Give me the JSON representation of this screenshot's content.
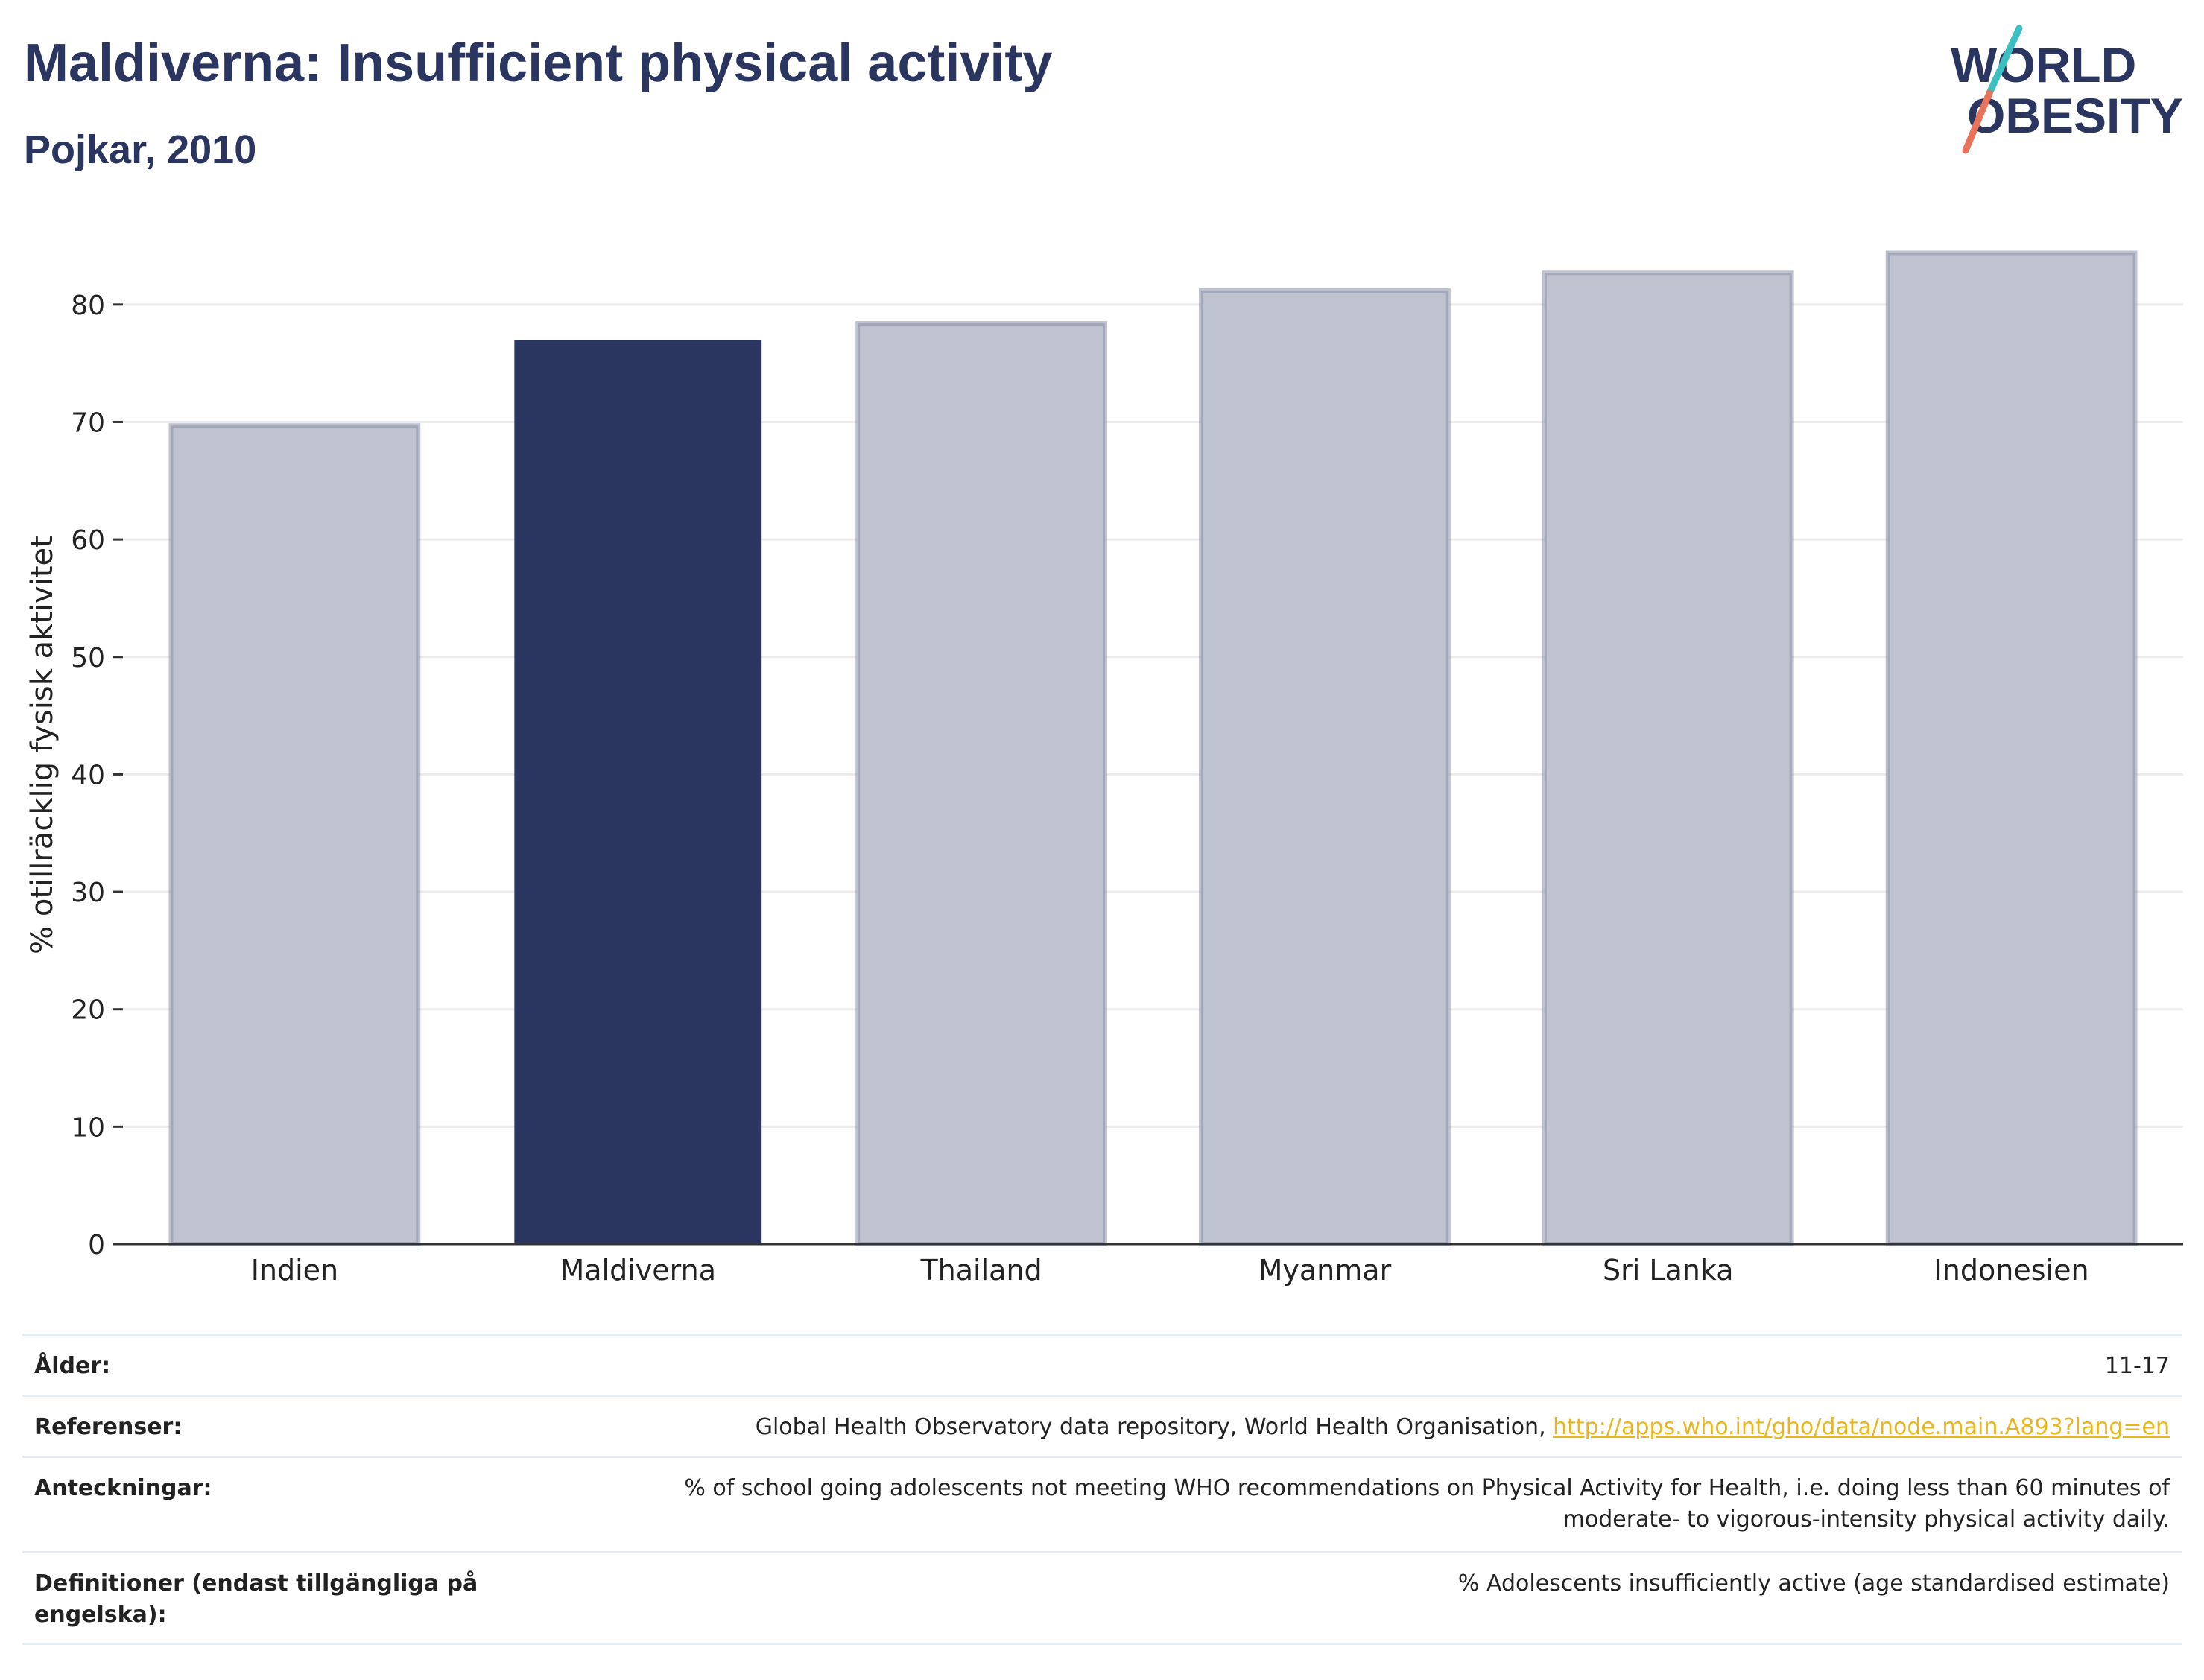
{
  "header": {
    "title": "Maldiverna: Insufficient physical activity",
    "subtitle": "Pojkar, 2010"
  },
  "logo": {
    "line1": "WORLD",
    "line2": "OBESITY",
    "colors": {
      "text": "#2a3560",
      "slash_top": "#3bbfc2",
      "slash_bottom": "#e8735a"
    }
  },
  "colors": {
    "highlight": "#2a3560",
    "other": "#bfc3cf",
    "other_border": "#8a91a9",
    "grid": "#ebebeb",
    "axis": "#333333",
    "link": "#e9b51f"
  },
  "chart_data": {
    "type": "bar",
    "categories": [
      "Indien",
      "Maldiverna",
      "Thailand",
      "Myanmar",
      "Sri Lanka",
      "Indonesien"
    ],
    "values": [
      69.7,
      77.0,
      78.4,
      81.2,
      82.7,
      84.4
    ],
    "highlight": "Maldiverna",
    "ylabel": "% otillräcklig fysisk aktivitet",
    "xlabel": "",
    "ylim": [
      0,
      85
    ],
    "yticks": [
      0,
      10,
      20,
      30,
      40,
      50,
      60,
      70,
      80
    ],
    "grid": true
  },
  "meta": {
    "age_label": "Ålder:",
    "age_value": "11-17",
    "refs_label": "Referenser:",
    "refs_text": "Global Health Observatory data repository, World Health Organisation, ",
    "refs_link": "http://apps.who.int/gho/data/node.main.A893?lang=en",
    "notes_label": "Anteckningar:",
    "notes_line1": "% of school going adolescents not meeting WHO recommendations on Physical Activity for Health, i.e. doing less than 60 minutes of",
    "notes_line2": "moderate- to vigorous-intensity physical activity daily.",
    "def_label": "Definitioner (endast tillgängliga på engelska):",
    "def_value": "% Adolescents insufficiently active (age standardised estimate)"
  }
}
